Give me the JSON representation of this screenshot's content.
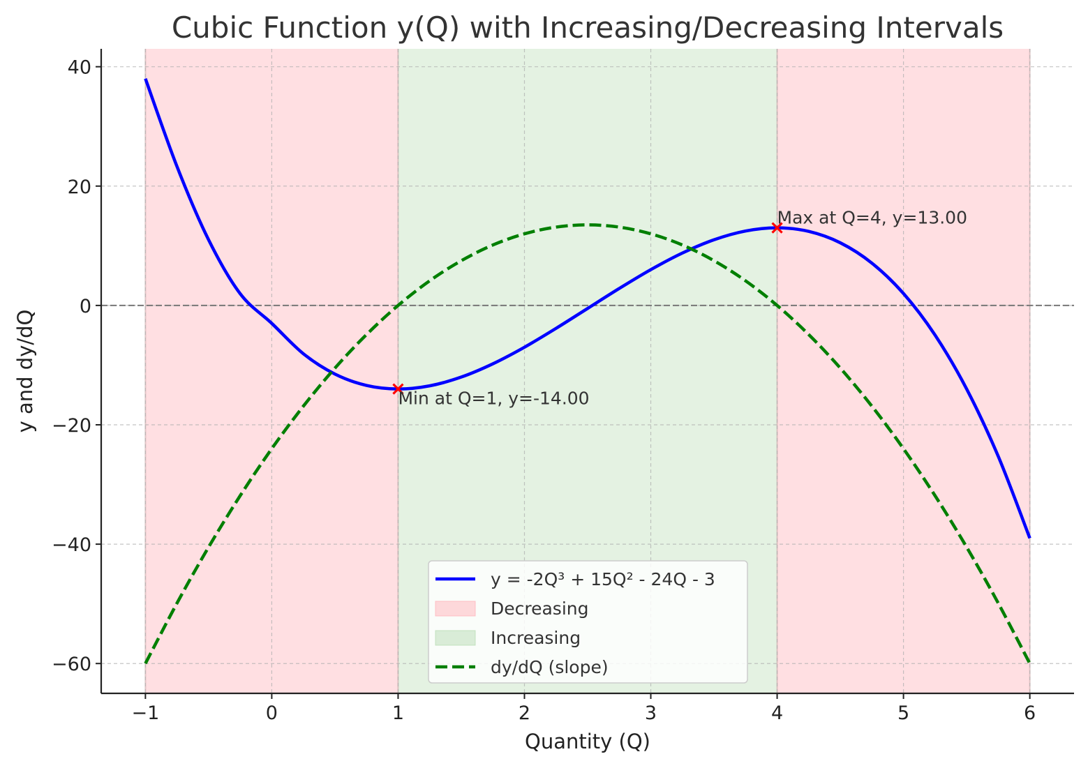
{
  "chart_data": {
    "type": "line",
    "title": "Cubic Function y(Q) with Increasing/Decreasing Intervals",
    "xlabel": "Quantity (Q)",
    "ylabel": "y and dy/dQ",
    "xlim": [
      -1.35,
      6.35
    ],
    "ylim": [
      -65,
      43
    ],
    "xticks": [
      -1,
      0,
      1,
      2,
      3,
      4,
      5,
      6
    ],
    "xtick_labels": [
      "−1",
      "0",
      "1",
      "2",
      "3",
      "4",
      "5",
      "6"
    ],
    "yticks": [
      -60,
      -40,
      -20,
      0,
      20,
      40
    ],
    "ytick_labels": [
      "−60",
      "−40",
      "−20",
      "0",
      "20",
      "40"
    ],
    "grid": true,
    "legend_position": "bottom-center",
    "regions": [
      {
        "type": "decreasing",
        "x": [
          -1,
          1
        ],
        "color": "#ffb3ba"
      },
      {
        "type": "increasing",
        "x": [
          1,
          4
        ],
        "color": "#b8dcb4"
      },
      {
        "type": "decreasing",
        "x": [
          4,
          6
        ],
        "color": "#ffb3ba"
      }
    ],
    "series": [
      {
        "name": "y = -2Q³ + 15Q² - 24Q - 3",
        "style": "solid",
        "color": "#0000ff",
        "x": [
          -1,
          -0.75,
          -0.5,
          -0.25,
          0,
          0.25,
          0.5,
          0.75,
          1,
          1.25,
          1.5,
          1.75,
          2,
          2.25,
          2.5,
          2.75,
          3,
          3.25,
          3.5,
          3.75,
          4,
          4.25,
          4.5,
          4.75,
          5,
          5.25,
          5.5,
          5.75,
          6
        ],
        "y": [
          38,
          23.28,
          11,
          1.97,
          -3,
          -8.09,
          -11.5,
          -13.41,
          -14,
          -13.47,
          -12,
          -9.78,
          -7,
          -3.84,
          -0.5,
          2.84,
          6,
          8.78,
          11,
          12.47,
          13,
          12.41,
          10.5,
          7.09,
          2,
          -4.97,
          -14,
          -25.28,
          -39
        ]
      },
      {
        "name": "dy/dQ (slope)",
        "style": "dashed",
        "color": "#007f00",
        "x": [
          -1,
          -0.75,
          -0.5,
          -0.25,
          0,
          0.25,
          0.5,
          0.75,
          1,
          1.25,
          1.5,
          1.75,
          2,
          2.25,
          2.5,
          2.75,
          3,
          3.25,
          3.5,
          3.75,
          4,
          4.25,
          4.5,
          4.75,
          5,
          5.25,
          5.5,
          5.75,
          6
        ],
        "y": [
          -60,
          -49.88,
          -40.5,
          -31.88,
          -24,
          -16.88,
          -10.5,
          -4.88,
          0,
          4.13,
          7.5,
          10.13,
          12,
          13.13,
          13.5,
          13.13,
          12,
          10.13,
          7.5,
          4.13,
          0,
          -4.88,
          -10.5,
          -16.88,
          -24,
          -31.88,
          -40.5,
          -49.88,
          -60
        ]
      }
    ],
    "markers": [
      {
        "x": 1,
        "y": -14,
        "label": "Min at Q=1, y=-14.00",
        "color": "#ff0000"
      },
      {
        "x": 4,
        "y": 13,
        "label": "Max at Q=4, y=13.00",
        "color": "#ff0000"
      }
    ],
    "legend": [
      {
        "label": "y = -2Q³ + 15Q² - 24Q - 3",
        "kind": "line-solid",
        "color": "#0000ff"
      },
      {
        "label": "Decreasing",
        "kind": "patch",
        "color": "#ffb3ba"
      },
      {
        "label": "Increasing",
        "kind": "patch",
        "color": "#b8dcb4"
      },
      {
        "label": "dy/dQ (slope)",
        "kind": "line-dashed",
        "color": "#007f00"
      }
    ]
  }
}
